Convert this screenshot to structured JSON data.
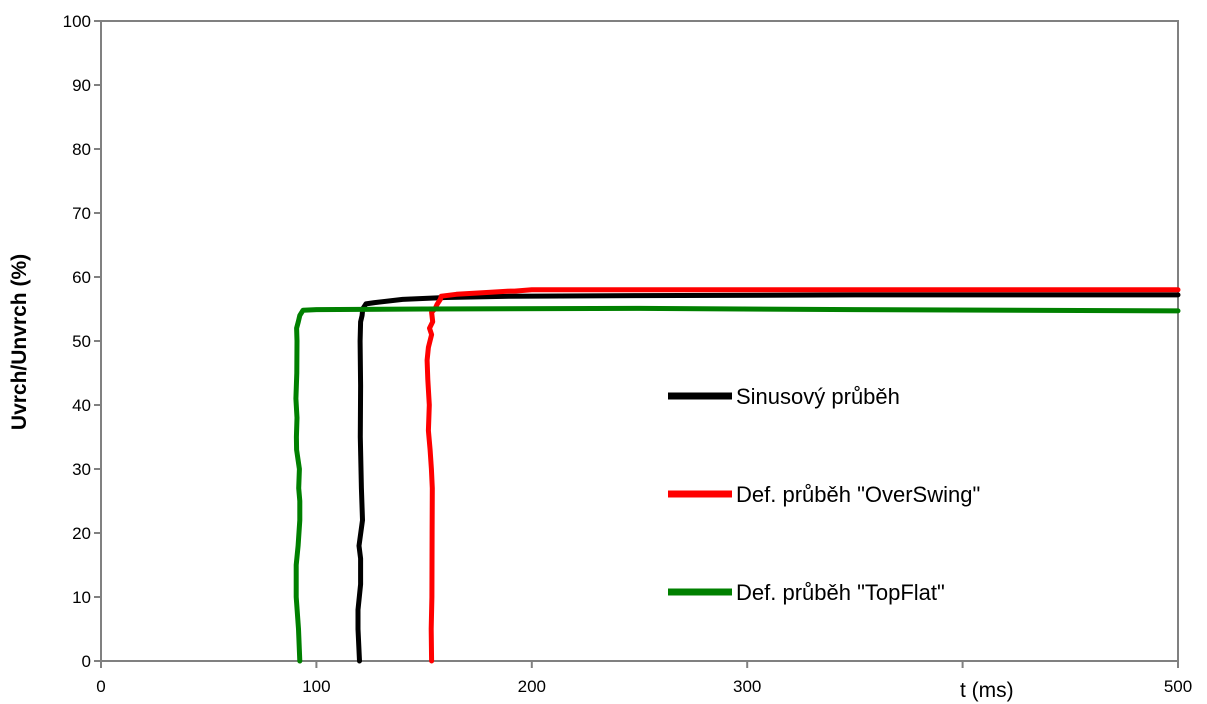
{
  "chart_data": {
    "type": "line",
    "title": "",
    "xlabel": "t (ms)",
    "ylabel": "Uvrch/Unvrch (%)",
    "xlim": [
      0,
      500
    ],
    "ylim": [
      0,
      100
    ],
    "x_ticks": [
      0,
      100,
      200,
      300,
      400,
      500
    ],
    "x_tick_labels": [
      "0",
      "100",
      "200",
      "300",
      "",
      "500"
    ],
    "y_ticks": [
      0,
      10,
      20,
      30,
      40,
      50,
      60,
      70,
      80,
      90,
      100
    ],
    "y_tick_labels": [
      "0",
      "10",
      "20",
      "30",
      "40",
      "50",
      "60",
      "70",
      "80",
      "90",
      "100"
    ],
    "grid": false,
    "legend_position": "inside-right",
    "series": [
      {
        "name": "Sinusový průběh",
        "color": "#000000",
        "points": [
          [
            120,
            0
          ],
          [
            119.3,
            5
          ],
          [
            119.3,
            8
          ],
          [
            120.5,
            12
          ],
          [
            120.5,
            16
          ],
          [
            119.8,
            18
          ],
          [
            121.4,
            22
          ],
          [
            120.9,
            27
          ],
          [
            120.4,
            35
          ],
          [
            120.5,
            43
          ],
          [
            120.3,
            50
          ],
          [
            120.5,
            53
          ],
          [
            121.2,
            54
          ],
          [
            121.5,
            55
          ],
          [
            123,
            55.8
          ],
          [
            127,
            56
          ],
          [
            140,
            56.5
          ],
          [
            160,
            56.8
          ],
          [
            190,
            57
          ],
          [
            250,
            57.1
          ],
          [
            350,
            57.2
          ],
          [
            500,
            57.2
          ]
        ]
      },
      {
        "name": "Def. průběh \"OverSwing\"",
        "color": "#ff0000",
        "points": [
          [
            153.5,
            0
          ],
          [
            153.3,
            5
          ],
          [
            153.6,
            10
          ],
          [
            153.7,
            20
          ],
          [
            153.8,
            27
          ],
          [
            153.4,
            30
          ],
          [
            152.8,
            33
          ],
          [
            152,
            36
          ],
          [
            152.4,
            40
          ],
          [
            151.7,
            44
          ],
          [
            151.4,
            47
          ],
          [
            152,
            49
          ],
          [
            153.5,
            51
          ],
          [
            152.5,
            52
          ],
          [
            154,
            53
          ],
          [
            153.5,
            54.5
          ],
          [
            155,
            55
          ],
          [
            156,
            55.7
          ],
          [
            157.5,
            56.5
          ],
          [
            158,
            57
          ],
          [
            165,
            57.3
          ],
          [
            180,
            57.6
          ],
          [
            190,
            57.8
          ],
          [
            192,
            57.8
          ],
          [
            200,
            58
          ],
          [
            250,
            58
          ],
          [
            350,
            58
          ],
          [
            500,
            58
          ]
        ]
      },
      {
        "name": "Def. průběh \"TopFlat\"",
        "color": "#008000",
        "points": [
          [
            92.3,
            0
          ],
          [
            91.7,
            5
          ],
          [
            90.6,
            10
          ],
          [
            90.6,
            15
          ],
          [
            91.5,
            18
          ],
          [
            92.3,
            22
          ],
          [
            92.3,
            25
          ],
          [
            91.8,
            27
          ],
          [
            92.1,
            30
          ],
          [
            90.8,
            33
          ],
          [
            90.7,
            35
          ],
          [
            91,
            38
          ],
          [
            90.5,
            41
          ],
          [
            90.9,
            45
          ],
          [
            91,
            50
          ],
          [
            90.8,
            52
          ],
          [
            91.6,
            53
          ],
          [
            92.3,
            54
          ],
          [
            93.8,
            54.8
          ],
          [
            100,
            54.9
          ],
          [
            150,
            55
          ],
          [
            250,
            55.1
          ],
          [
            350,
            54.9
          ],
          [
            500,
            54.7
          ]
        ]
      }
    ]
  }
}
